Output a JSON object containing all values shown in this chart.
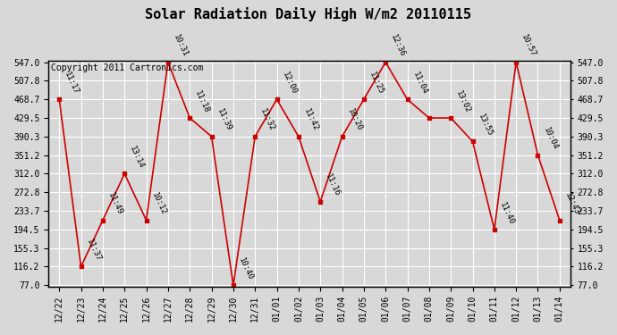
{
  "title": "Solar Radiation Daily High W/m2 20110115",
  "copyright": "Copyright 2011 Cartronics.com",
  "x_labels": [
    "12/22",
    "12/23",
    "12/24",
    "12/25",
    "12/26",
    "12/27",
    "12/28",
    "12/29",
    "12/30",
    "12/31",
    "01/01",
    "01/02",
    "01/03",
    "01/04",
    "01/05",
    "01/06",
    "01/07",
    "01/08",
    "01/09",
    "01/10",
    "01/11",
    "01/12",
    "01/13",
    "01/14"
  ],
  "y_values": [
    468.7,
    116.2,
    214.0,
    312.0,
    214.0,
    547.0,
    429.5,
    390.3,
    77.0,
    390.3,
    468.7,
    390.3,
    253.0,
    390.3,
    468.7,
    547.0,
    468.7,
    429.5,
    429.5,
    380.0,
    194.5,
    547.0,
    351.2,
    214.0
  ],
  "time_labels": [
    "11:17",
    "11:37",
    "11:49",
    "13:14",
    "10:12",
    "10:31",
    "11:18",
    "11:39",
    "10:40",
    "11:32",
    "12:00",
    "11:42",
    "11:16",
    "10:20",
    "11:25",
    "12:36",
    "11:04",
    "",
    "13:02",
    "13:55",
    "11:40",
    "10:57",
    "10:04",
    "12:43"
  ],
  "ylim_min": 77.0,
  "ylim_max": 547.0,
  "yticks": [
    77.0,
    116.2,
    155.3,
    194.5,
    233.7,
    272.8,
    312.0,
    351.2,
    390.3,
    429.5,
    468.7,
    507.8,
    547.0
  ],
  "line_color": "#cc0000",
  "marker_color": "#cc0000",
  "bg_color": "#d8d8d8",
  "grid_color": "#ffffff",
  "title_fontsize": 11,
  "copyright_fontsize": 7,
  "tick_fontsize": 7,
  "label_fontsize": 6.5
}
